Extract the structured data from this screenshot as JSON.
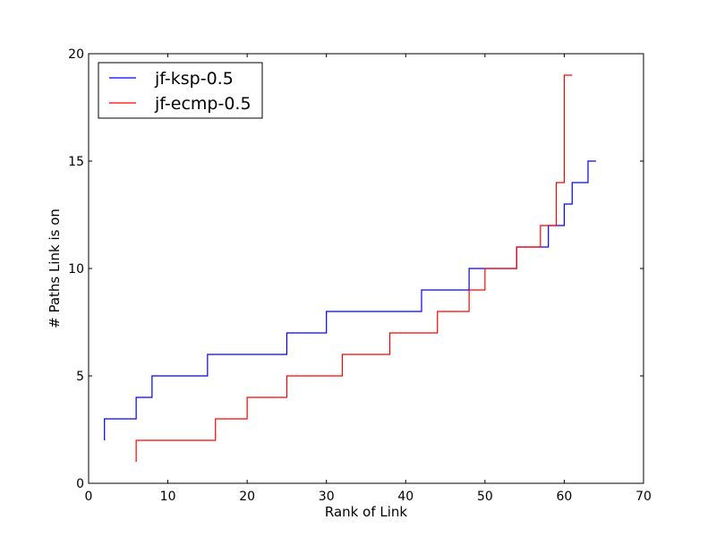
{
  "chart_data": {
    "type": "line",
    "step": "post",
    "title": "",
    "xlabel": "Rank of Link",
    "ylabel": "# Paths Link is on",
    "xlim": [
      0,
      70
    ],
    "ylim": [
      0,
      20
    ],
    "xticks": [
      0,
      10,
      20,
      30,
      40,
      50,
      60,
      70
    ],
    "yticks": [
      0,
      5,
      10,
      15,
      20
    ],
    "grid": false,
    "legend_position": "top-left",
    "series": [
      {
        "name": "jf-ksp-0.5",
        "color": "#0000ff",
        "x": [
          2,
          2,
          6,
          8,
          15,
          25,
          30,
          42,
          48,
          54,
          58,
          60,
          61,
          63,
          64
        ],
        "y": [
          2,
          3,
          4,
          5,
          6,
          7,
          8,
          9,
          10,
          11,
          12,
          13,
          14,
          15,
          15
        ]
      },
      {
        "name": "jf-ecmp-0.5",
        "color": "#ff0000",
        "x": [
          6,
          6,
          16,
          20,
          25,
          32,
          38,
          44,
          48,
          50,
          54,
          57,
          59,
          60,
          61
        ],
        "y": [
          1,
          2,
          3,
          4,
          5,
          6,
          7,
          8,
          9,
          10,
          11,
          12,
          14,
          19,
          19
        ]
      }
    ]
  }
}
